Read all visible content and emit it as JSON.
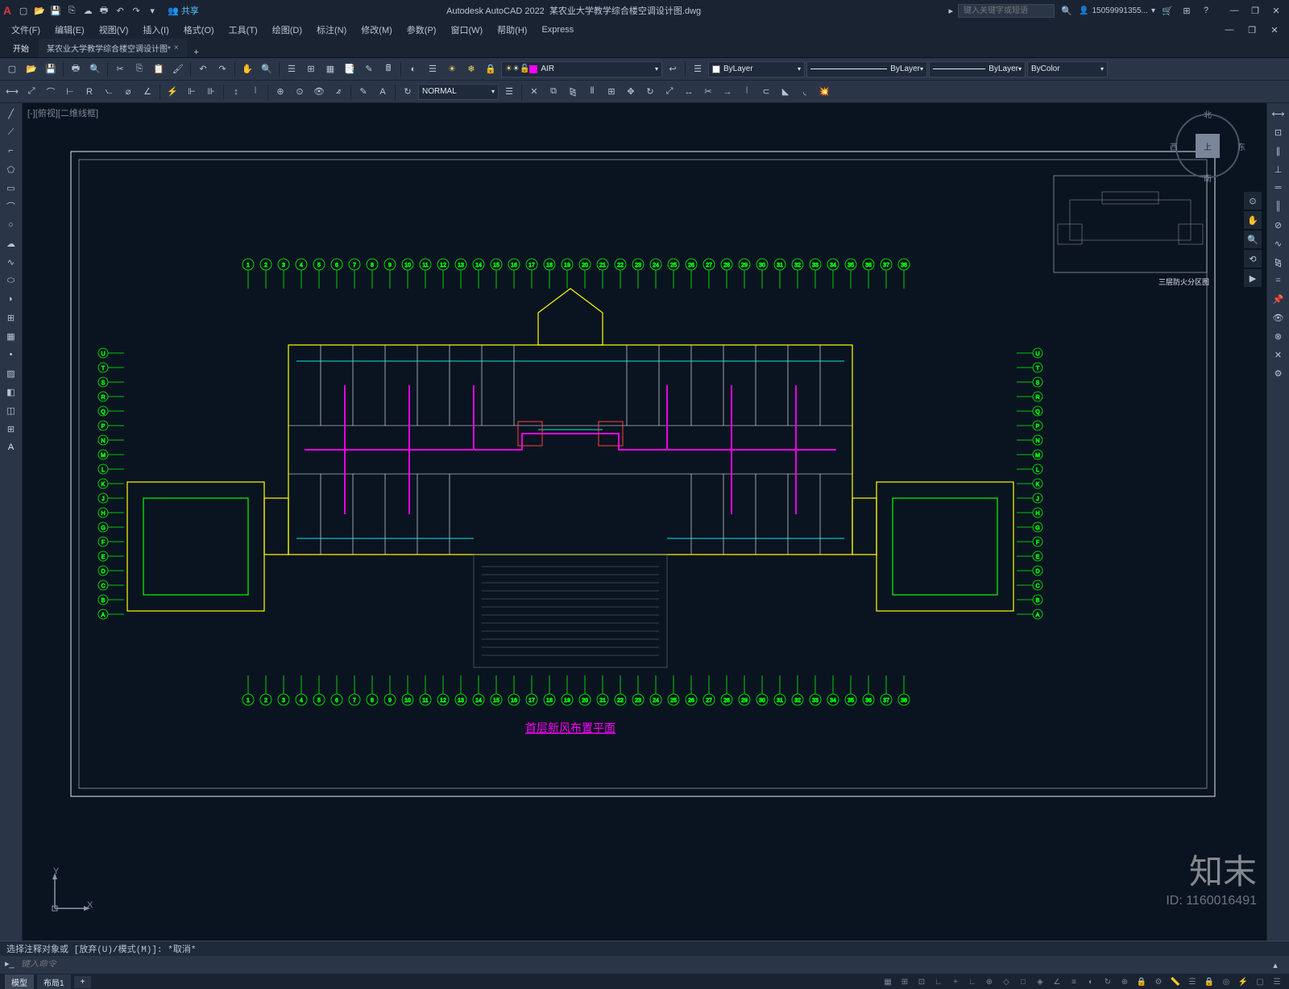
{
  "app": {
    "name": "Autodesk AutoCAD 2022",
    "filename": "某农业大学教学综合楼空调设计图.dwg",
    "share_label": "共享",
    "search_placeholder": "键入关键字或短语",
    "username": "15059991355..."
  },
  "menu": {
    "items": [
      "文件(F)",
      "编辑(E)",
      "视图(V)",
      "插入(I)",
      "格式(O)",
      "工具(T)",
      "绘图(D)",
      "标注(N)",
      "修改(M)",
      "参数(P)",
      "窗口(W)",
      "帮助(H)",
      "Express"
    ]
  },
  "tabs": {
    "start": "开始",
    "file": "某农业大学教学综合楼空调设计图*",
    "close": "×",
    "add": "+"
  },
  "toolbar2": {
    "normal_combo": "NORMAL",
    "layer_combo": {
      "color": "#ff00ff",
      "name": "AIR"
    },
    "color_combo": "ByLayer",
    "linetype_combo": "ByLayer",
    "lineweight_combo": "ByLayer",
    "plotstyle_combo": "ByColor"
  },
  "viewport_label": "[-][俯视][二维线框]",
  "viewcube": {
    "top": "上",
    "n": "北",
    "s": "南",
    "e": "东",
    "w": "西"
  },
  "drawing": {
    "border_color": "#e0e6ed",
    "grid_color": "#00ff00",
    "wall_color": "#ffff00",
    "duct_color": "#ff00ff",
    "pipe_color": "#00ffff",
    "red_color": "#ff4040",
    "white_color": "#ffffff",
    "bg_color": "#0a1420",
    "grid_labels_top": [
      "1",
      "2",
      "3",
      "4",
      "5",
      "6",
      "7",
      "8",
      "9",
      "10",
      "11",
      "12",
      "13",
      "14",
      "15",
      "16",
      "17",
      "18",
      "19",
      "20",
      "21",
      "22",
      "23",
      "24",
      "25",
      "26",
      "27",
      "28",
      "29",
      "30",
      "31",
      "32",
      "33",
      "34",
      "35",
      "36",
      "37",
      "38"
    ],
    "grid_labels_left": [
      "U",
      "T",
      "S",
      "R",
      "Q",
      "P",
      "N",
      "M",
      "L",
      "K",
      "J",
      "H",
      "G",
      "F",
      "E",
      "D",
      "C",
      "B",
      "A"
    ],
    "title_text": "首层新风布置平面",
    "minimap_title": "三层防火分区图"
  },
  "ucs": {
    "x": "X",
    "y": "Y"
  },
  "cmd": {
    "history": "选择注释对象或  [放弃(U)/模式(M)]:  *取消*",
    "placeholder": "键入命令"
  },
  "statusbar": {
    "model": "模型",
    "layout1": "布局1",
    "add": "+"
  },
  "watermark": {
    "brand": "知末",
    "id": "ID: 1160016491"
  },
  "colors": {
    "bg_dark": "#1a2332",
    "bg_med": "#2a3648",
    "bg_canvas": "#0a1420",
    "text": "#b8c4d4",
    "accent": "#4fc3f7"
  }
}
